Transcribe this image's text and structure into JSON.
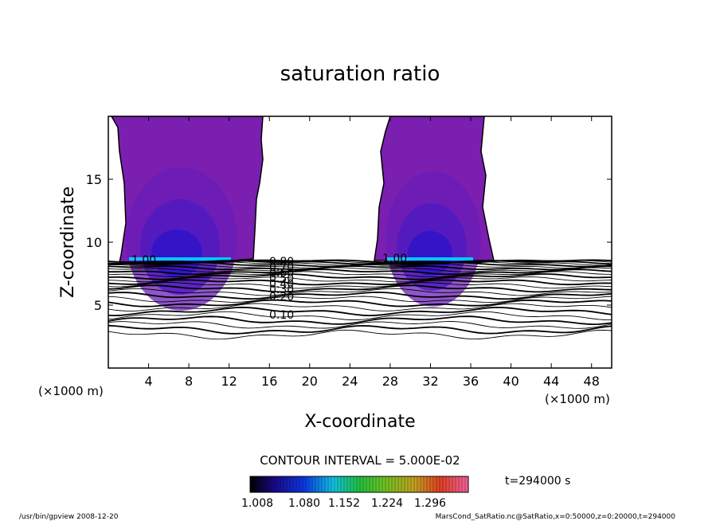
{
  "chart_data": {
    "type": "contour",
    "title": "saturation ratio",
    "xlabel": "X-coordinate",
    "ylabel": "Z-coordinate",
    "x_unit": "(×1000 m)",
    "z_unit": "(×1000 m)",
    "xlim": [
      0,
      50
    ],
    "ylim": [
      0,
      20
    ],
    "x_ticks": [
      4,
      8,
      12,
      16,
      20,
      24,
      28,
      32,
      36,
      40,
      44,
      48
    ],
    "y_ticks": [
      5,
      10,
      15
    ],
    "contour_interval_label": "CONTOUR INTERVAL = 5.000E-02",
    "time_label": "t=294000 s",
    "colorbar_ticks": [
      "1.008",
      "1.080",
      "1.152",
      "1.224",
      "1.296"
    ],
    "contour_labels": [
      "1.00",
      "1.00",
      "0.20",
      "0.10",
      "0.80",
      "0.70",
      "0.60",
      "0.50",
      "0.40",
      "0.30"
    ],
    "footer_left": "/usr/bin/gpview  2008-12-20",
    "footer_right": "MarsCond_SatRatio.nc@SatRatio,x=0:50000,z=0:20000,t=294000",
    "colors": {
      "supersaturated_fill": "#7a1fb0",
      "core_fill": "#2a10c8",
      "base_highlight": "#00c8ff"
    }
  }
}
